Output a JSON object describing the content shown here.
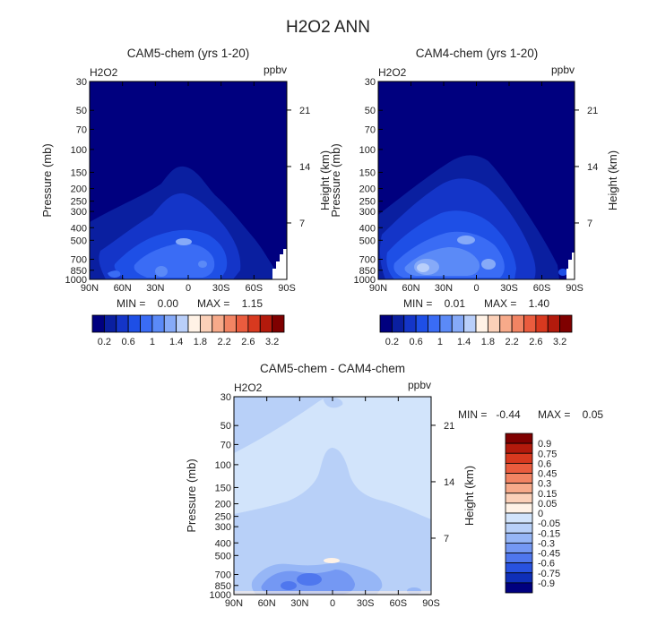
{
  "figure_title": "H2O2 ANN",
  "chart_data": [
    {
      "type": "contour",
      "panel_title": "CAM5-chem (yrs 1-20)",
      "variable_label": "H2O2",
      "units_label": "ppbv",
      "xlabel": "",
      "ylabel": "Pressure (mb)",
      "y2label": "Height (km)",
      "x_ticks": [
        "90N",
        "60N",
        "30N",
        "0",
        "30S",
        "60S",
        "90S"
      ],
      "y_ticks": [
        "30",
        "50",
        "70",
        "100",
        "150",
        "200",
        "250",
        "300",
        "400",
        "500",
        "700",
        "850",
        "1000"
      ],
      "y2_ticks": [
        "21",
        "14",
        "7"
      ],
      "min_text": "MIN =    0.00",
      "max_text": "MAX =    1.15",
      "min": 0.0,
      "max": 1.15,
      "colorbar_ticks": [
        "0.2",
        "0.6",
        "1",
        "1.4",
        "1.8",
        "2.2",
        "2.6",
        "3.2"
      ]
    },
    {
      "type": "contour",
      "panel_title": "CAM4-chem (yrs 1-20)",
      "variable_label": "H2O2",
      "units_label": "ppbv",
      "xlabel": "",
      "ylabel": "Pressure (mb)",
      "y2label": "Height (km)",
      "x_ticks": [
        "90N",
        "60N",
        "30N",
        "0",
        "30S",
        "60S",
        "90S"
      ],
      "y_ticks": [
        "30",
        "50",
        "70",
        "100",
        "150",
        "200",
        "250",
        "300",
        "400",
        "500",
        "700",
        "850",
        "1000"
      ],
      "y2_ticks": [
        "21",
        "14",
        "7"
      ],
      "min_text": "MIN =    0.01",
      "max_text": "MAX =    1.40",
      "min": 0.01,
      "max": 1.4,
      "colorbar_ticks": [
        "0.2",
        "0.6",
        "1",
        "1.4",
        "1.8",
        "2.2",
        "2.6",
        "3.2"
      ]
    },
    {
      "type": "contour",
      "panel_title": "CAM5-chem - CAM4-chem",
      "variable_label": "H2O2",
      "units_label": "ppbv",
      "xlabel": "",
      "ylabel": "Pressure (mb)",
      "y2label": "Height (km)",
      "x_ticks": [
        "90N",
        "60N",
        "30N",
        "0",
        "30S",
        "60S",
        "90S"
      ],
      "y_ticks": [
        "30",
        "50",
        "70",
        "100",
        "150",
        "200",
        "250",
        "300",
        "400",
        "500",
        "700",
        "850",
        "1000"
      ],
      "y2_ticks": [
        "21",
        "14",
        "7"
      ],
      "min_text": "MIN =   -0.44",
      "max_text": "MAX =    0.05",
      "min": -0.44,
      "max": 0.05,
      "colorbar_ticks": [
        "0.9",
        "0.75",
        "0.6",
        "0.45",
        "0.3",
        "0.15",
        "0.05",
        "0",
        "-0.05",
        "-0.15",
        "-0.3",
        "-0.45",
        "-0.6",
        "-0.75",
        "-0.9"
      ]
    }
  ],
  "colors": {
    "abs_scale": [
      "#00007f",
      "#0a1fa0",
      "#1435c8",
      "#1e4fe6",
      "#3a6cf5",
      "#5b8af7",
      "#86aaf8",
      "#b9cffa",
      "#fff2e6",
      "#fbd0b8",
      "#f7aa8a",
      "#f28463",
      "#ea5c3e",
      "#d8391f",
      "#b31a0c",
      "#7f0000"
    ],
    "diff_scale": [
      "#7f0000",
      "#b31a0c",
      "#d8391f",
      "#ea5c3e",
      "#f28463",
      "#f7aa8a",
      "#fbd0b8",
      "#fff2e6",
      "#d2e4fb",
      "#b8d0f8",
      "#96b6f6",
      "#7498f3",
      "#4f77ee",
      "#2852e0",
      "#0f2fb8",
      "#00007f"
    ]
  }
}
